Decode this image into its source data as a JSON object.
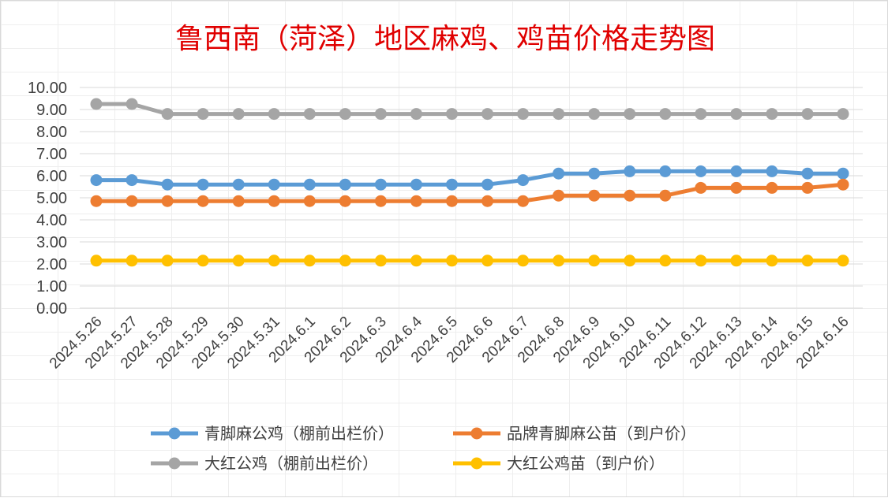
{
  "chart_data": {
    "type": "line",
    "title": "鲁西南（菏泽）地区麻鸡、鸡苗价格走势图",
    "xlabel": "",
    "ylabel": "",
    "ylim": [
      0,
      10
    ],
    "yticks": [
      "0.00",
      "1.00",
      "2.00",
      "3.00",
      "4.00",
      "5.00",
      "6.00",
      "7.00",
      "8.00",
      "9.00",
      "10.00"
    ],
    "grid": true,
    "legend_position": "bottom",
    "x": [
      "2024.5.26",
      "2024.5.27",
      "2024.5.28",
      "2024.5.29",
      "2024.5.30",
      "2024.5.31",
      "2024.6.1",
      "2024.6.2",
      "2024.6.3",
      "2024.6.4",
      "2024.6.5",
      "2024.6.6",
      "2024.6.7",
      "2024.6.8",
      "2024.6.9",
      "2024.6.10",
      "2024.6.11",
      "2024.6.12",
      "2024.6.13",
      "2024.6.14",
      "2024.6.15",
      "2024.6.16"
    ],
    "series": [
      {
        "name": "青脚麻公鸡（棚前出栏价）",
        "color": "#5b9bd5",
        "values": [
          5.8,
          5.8,
          5.6,
          5.6,
          5.6,
          5.6,
          5.6,
          5.6,
          5.6,
          5.6,
          5.6,
          5.6,
          5.8,
          6.1,
          6.1,
          6.2,
          6.2,
          6.2,
          6.2,
          6.2,
          6.1,
          6.1
        ]
      },
      {
        "name": "品牌青脚麻公苗（到户价）",
        "color": "#ed7d31",
        "values": [
          4.85,
          4.85,
          4.85,
          4.85,
          4.85,
          4.85,
          4.85,
          4.85,
          4.85,
          4.85,
          4.85,
          4.85,
          4.85,
          5.1,
          5.1,
          5.1,
          5.1,
          5.45,
          5.45,
          5.45,
          5.45,
          5.6
        ]
      },
      {
        "name": "大红公鸡（棚前出栏价）",
        "color": "#a5a5a5",
        "values": [
          9.25,
          9.25,
          8.8,
          8.8,
          8.8,
          8.8,
          8.8,
          8.8,
          8.8,
          8.8,
          8.8,
          8.8,
          8.8,
          8.8,
          8.8,
          8.8,
          8.8,
          8.8,
          8.8,
          8.8,
          8.8,
          8.8
        ]
      },
      {
        "name": "大红公鸡苗（到户价）",
        "color": "#ffc000",
        "values": [
          2.15,
          2.15,
          2.15,
          2.15,
          2.15,
          2.15,
          2.15,
          2.15,
          2.15,
          2.15,
          2.15,
          2.15,
          2.15,
          2.15,
          2.15,
          2.15,
          2.15,
          2.15,
          2.15,
          2.15,
          2.15,
          2.15
        ]
      }
    ]
  }
}
